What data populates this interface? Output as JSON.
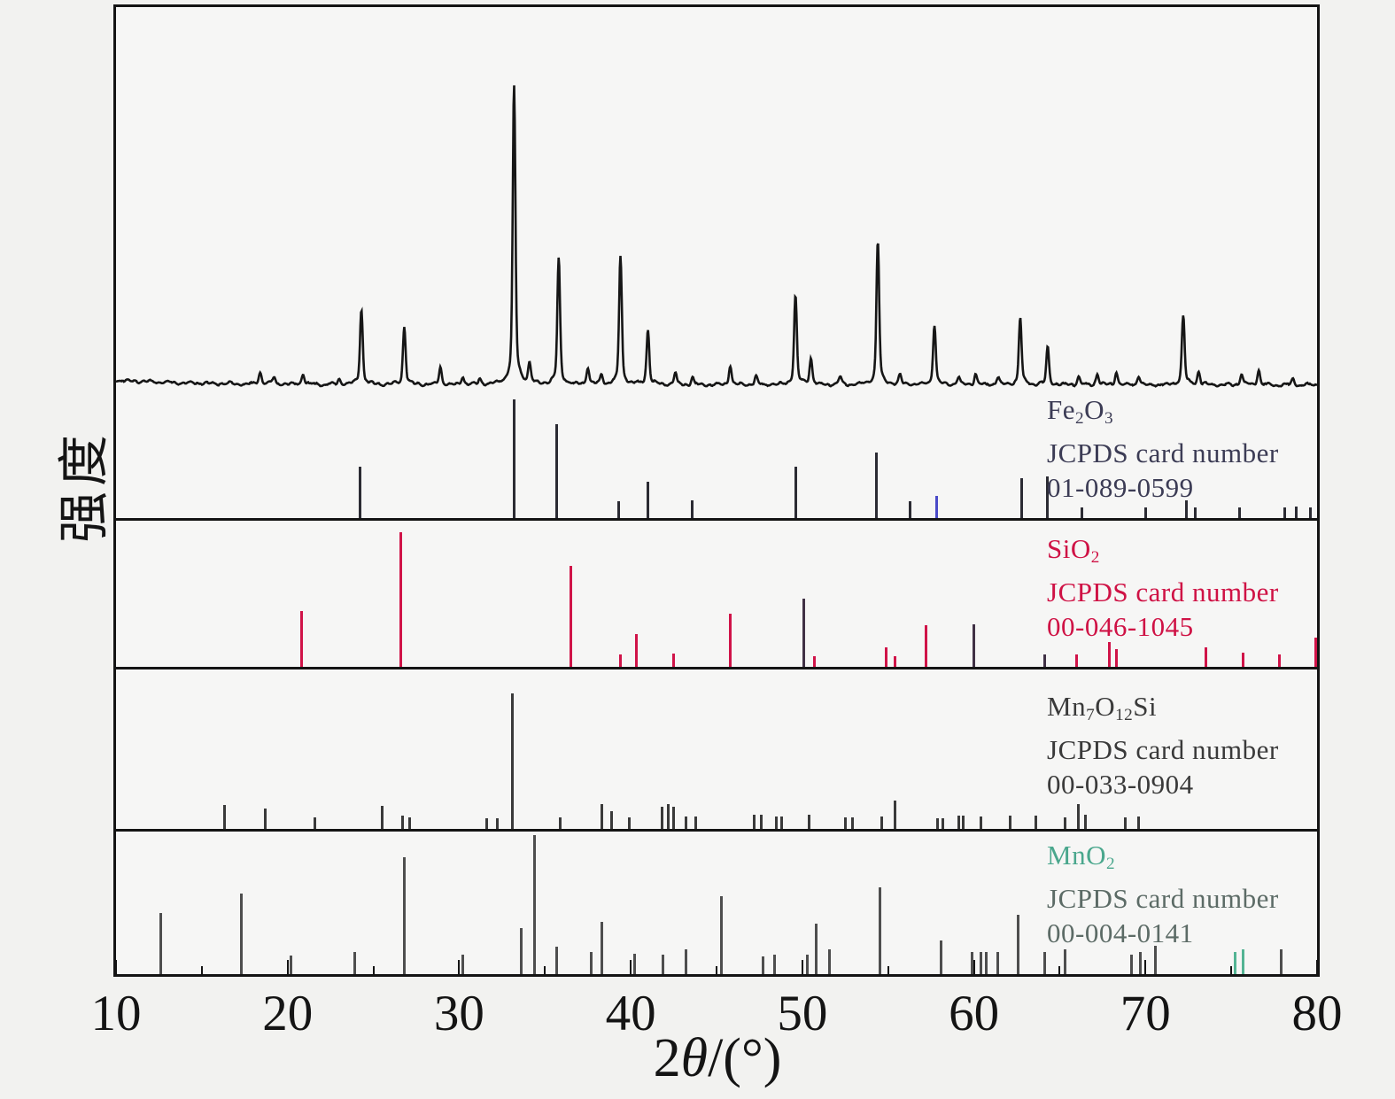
{
  "figure": {
    "background": "#f2f2f0",
    "frame_color": "#141414",
    "plot_background": "#f6f6f5"
  },
  "axes": {
    "xlabel_parts": [
      [
        "2",
        0
      ],
      [
        "θ",
        1
      ],
      [
        "/(°)",
        0
      ]
    ],
    "ylabel": "强度",
    "x_range": [
      10,
      80
    ],
    "major_ticks": [
      10,
      20,
      30,
      40,
      50,
      60,
      70,
      80
    ],
    "minor_ticks": [
      15,
      25,
      35,
      45,
      55,
      65,
      75
    ]
  },
  "chart_data": {
    "type": "line",
    "description": "Powder XRD pattern (top) compared with four JCPDS reference stick patterns in stacked panels",
    "x_axis": {
      "label": "2θ/(°)",
      "range": [
        10,
        80
      ],
      "ticks": [
        10,
        20,
        30,
        40,
        50,
        60,
        70,
        80
      ]
    },
    "y_axis": {
      "label": "强度"
    },
    "observed": {
      "name": "measured-xrd-pattern",
      "color": "#161616",
      "peaks": [
        [
          18.4,
          14
        ],
        [
          19.2,
          8
        ],
        [
          20.9,
          12
        ],
        [
          23.0,
          6
        ],
        [
          24.3,
          85
        ],
        [
          26.8,
          66
        ],
        [
          28.9,
          20
        ],
        [
          30.2,
          10
        ],
        [
          31.2,
          6
        ],
        [
          33.2,
          337
        ],
        [
          34.1,
          22
        ],
        [
          35.8,
          142
        ],
        [
          37.5,
          20
        ],
        [
          38.3,
          10
        ],
        [
          39.4,
          145
        ],
        [
          41.0,
          62
        ],
        [
          42.6,
          13
        ],
        [
          43.6,
          9
        ],
        [
          45.8,
          22
        ],
        [
          47.3,
          9
        ],
        [
          49.6,
          100
        ],
        [
          50.5,
          30
        ],
        [
          52.2,
          9
        ],
        [
          54.4,
          162
        ],
        [
          55.7,
          11
        ],
        [
          57.7,
          69
        ],
        [
          59.1,
          9
        ],
        [
          60.1,
          13
        ],
        [
          61.4,
          9
        ],
        [
          62.7,
          76
        ],
        [
          64.3,
          42
        ],
        [
          66.1,
          9
        ],
        [
          67.2,
          13
        ],
        [
          68.3,
          15
        ],
        [
          69.6,
          10
        ],
        [
          72.2,
          78
        ],
        [
          73.1,
          14
        ],
        [
          75.6,
          13
        ],
        [
          76.6,
          17
        ],
        [
          78.6,
          7
        ]
      ]
    },
    "reference_panels": [
      {
        "name": "Fe2O3",
        "formula_parts": [
          [
            "Fe",
            0
          ],
          [
            "2",
            1
          ],
          [
            "O",
            0
          ],
          [
            "3",
            1
          ]
        ],
        "card_label": "JCPDS card number",
        "card_number": "01-089-0599",
        "label_color": "#3c3c55",
        "stick_color": "#2b2b33",
        "accent_color": "#4a4ac8",
        "sticks": [
          [
            24.2,
            58
          ],
          [
            33.2,
            134
          ],
          [
            35.7,
            106
          ],
          [
            39.3,
            19
          ],
          [
            41.0,
            41
          ],
          [
            43.6,
            20
          ],
          [
            49.6,
            58
          ],
          [
            54.3,
            74
          ],
          [
            56.3,
            19
          ],
          [
            62.8,
            45
          ],
          [
            64.3,
            47
          ],
          [
            66.3,
            12
          ],
          [
            70.0,
            12
          ],
          [
            72.4,
            20
          ],
          [
            72.9,
            12
          ],
          [
            75.5,
            12
          ],
          [
            78.1,
            12
          ],
          [
            78.8,
            13
          ],
          [
            79.6,
            12
          ]
        ],
        "accent_sticks": [
          [
            57.8,
            25
          ]
        ]
      },
      {
        "name": "SiO2",
        "formula_parts": [
          [
            "Si",
            0
          ],
          [
            "O",
            0
          ],
          [
            "2",
            1
          ]
        ],
        "card_label": "JCPDS card number",
        "card_number": "00-046-1045",
        "label_color": "#cf1245",
        "stick_color": "#d01348",
        "accent_color": "#403145",
        "sticks": [
          [
            20.8,
            63
          ],
          [
            26.6,
            152
          ],
          [
            36.5,
            114
          ],
          [
            39.4,
            14
          ],
          [
            40.3,
            37
          ],
          [
            42.5,
            15
          ],
          [
            45.8,
            60
          ],
          [
            50.7,
            12
          ],
          [
            54.9,
            22
          ],
          [
            55.4,
            12
          ],
          [
            57.2,
            47
          ],
          [
            66.0,
            14
          ],
          [
            67.9,
            28
          ],
          [
            68.3,
            20
          ],
          [
            73.5,
            22
          ],
          [
            75.7,
            16
          ],
          [
            77.8,
            14
          ],
          [
            79.9,
            33
          ]
        ],
        "accent_sticks": [
          [
            50.1,
            77
          ],
          [
            60.0,
            48
          ],
          [
            64.1,
            14
          ]
        ]
      },
      {
        "name": "Mn7O12Si",
        "formula_parts": [
          [
            "Mn",
            0
          ],
          [
            "7",
            1
          ],
          [
            "O",
            0
          ],
          [
            "12",
            1
          ],
          [
            "Si",
            0
          ]
        ],
        "card_label": "JCPDS card number",
        "card_number": "00-033-0904",
        "label_color": "#3a3a3a",
        "stick_color": "#3a3a3a",
        "accent_color": "#3a3a3a",
        "sticks": [
          [
            16.3,
            27
          ],
          [
            18.7,
            23
          ],
          [
            21.6,
            13
          ],
          [
            25.5,
            26
          ],
          [
            26.7,
            15
          ],
          [
            27.1,
            13
          ],
          [
            31.6,
            12
          ],
          [
            32.2,
            12
          ],
          [
            33.1,
            153
          ],
          [
            35.9,
            13
          ],
          [
            38.3,
            28
          ],
          [
            38.9,
            20
          ],
          [
            39.9,
            13
          ],
          [
            41.8,
            25
          ],
          [
            42.2,
            28
          ],
          [
            42.5,
            25
          ],
          [
            43.2,
            14
          ],
          [
            43.8,
            14
          ],
          [
            47.2,
            16
          ],
          [
            47.6,
            16
          ],
          [
            48.5,
            14
          ],
          [
            48.8,
            14
          ],
          [
            50.4,
            16
          ],
          [
            52.5,
            13
          ],
          [
            52.9,
            13
          ],
          [
            54.6,
            14
          ],
          [
            55.4,
            32
          ],
          [
            57.9,
            12
          ],
          [
            58.2,
            12
          ],
          [
            59.1,
            15
          ],
          [
            59.4,
            15
          ],
          [
            60.4,
            14
          ],
          [
            62.1,
            15
          ],
          [
            63.6,
            15
          ],
          [
            65.3,
            13
          ],
          [
            66.1,
            28
          ],
          [
            66.5,
            16
          ],
          [
            68.8,
            13
          ],
          [
            69.6,
            14
          ]
        ],
        "accent_sticks": []
      },
      {
        "name": "MnO2",
        "formula_parts": [
          [
            "Mn",
            0
          ],
          [
            "O",
            0
          ],
          [
            "2",
            1
          ]
        ],
        "card_label": "JCPDS card number",
        "card_number": "00-004-0141",
        "label_color": "#4aa78d",
        "card_text_color": "#5c6b66",
        "stick_color": "#4e4e4e",
        "accent_color": "#53b493",
        "sticks": [
          [
            12.6,
            69
          ],
          [
            17.3,
            91
          ],
          [
            20.2,
            21
          ],
          [
            23.9,
            25
          ],
          [
            26.8,
            132
          ],
          [
            30.2,
            22
          ],
          [
            33.6,
            52
          ],
          [
            34.4,
            157
          ],
          [
            35.7,
            31
          ],
          [
            37.7,
            25
          ],
          [
            38.3,
            59
          ],
          [
            40.2,
            23
          ],
          [
            41.9,
            22
          ],
          [
            43.2,
            28
          ],
          [
            45.3,
            88
          ],
          [
            47.7,
            20
          ],
          [
            48.4,
            22
          ],
          [
            50.3,
            22
          ],
          [
            50.8,
            57
          ],
          [
            51.6,
            28
          ],
          [
            54.5,
            98
          ],
          [
            58.1,
            38
          ],
          [
            59.9,
            25
          ],
          [
            60.4,
            25
          ],
          [
            60.7,
            25
          ],
          [
            61.4,
            25
          ],
          [
            62.6,
            67
          ],
          [
            64.1,
            25
          ],
          [
            65.3,
            28
          ],
          [
            69.2,
            22
          ],
          [
            69.7,
            25
          ],
          [
            70.6,
            32
          ],
          [
            77.9,
            28
          ]
        ],
        "accent_sticks": [
          [
            75.2,
            25
          ],
          [
            75.7,
            28
          ]
        ]
      }
    ]
  }
}
